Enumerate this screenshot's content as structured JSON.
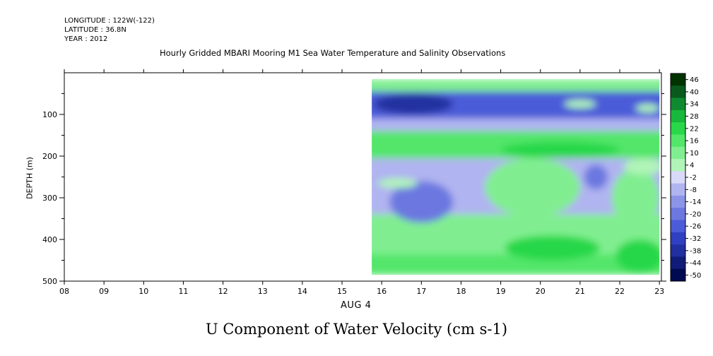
{
  "header": {
    "longitude": "LONGITUDE : 122W(-122)",
    "latitude": "LATITUDE : 36.8N",
    "year": "YEAR : 2012",
    "title": "Hourly Gridded MBARI Mooring M1 Sea Water Temperature and Salinity Observations"
  },
  "chart_data": {
    "type": "heatmap",
    "title": "U Component of Water Velocity (cm s-1)",
    "xlabel": "AUG  4",
    "ylabel": "DEPTH (m)",
    "x_ticks": [
      "08",
      "09",
      "10",
      "11",
      "12",
      "13",
      "14",
      "15",
      "16",
      "17",
      "18",
      "19",
      "20",
      "21",
      "22",
      "23"
    ],
    "y_ticks": [
      "100",
      "200",
      "300",
      "400",
      "500"
    ],
    "x_range_hours": [
      8,
      23.05
    ],
    "y_range_m": [
      500,
      0
    ],
    "data_x_range_hours": [
      15.75,
      23
    ],
    "data_depth_range_m": [
      15,
      485
    ],
    "colorbar_levels": [
      "46",
      "40",
      "34",
      "28",
      "22",
      "16",
      "10",
      "4",
      "-2",
      "-8",
      "-14",
      "-20",
      "-26",
      "-32",
      "-38",
      "-44",
      "-50"
    ],
    "colorbar_colors": [
      "#003300",
      "#0a5a1e",
      "#108a30",
      "#18b83c",
      "#28d848",
      "#52e66a",
      "#80ee90",
      "#b0f4b8",
      "#d8daf8",
      "#b0b4f0",
      "#8c94e8",
      "#6c78e0",
      "#4c5cd8",
      "#3040c0",
      "#2030a0",
      "#101c78",
      "#000a50"
    ],
    "grid": false,
    "bands": [
      {
        "depth_top": 15,
        "depth_bottom": 45,
        "value": 10
      },
      {
        "depth_top": 45,
        "depth_bottom": 110,
        "value": -25
      },
      {
        "depth_top": 110,
        "depth_bottom": 140,
        "value": -8
      },
      {
        "depth_top": 140,
        "depth_bottom": 205,
        "value": 16
      },
      {
        "depth_top": 205,
        "depth_bottom": 340,
        "value": -10
      },
      {
        "depth_top": 340,
        "depth_bottom": 435,
        "value": 10
      },
      {
        "depth_top": 435,
        "depth_bottom": 485,
        "value": 16
      }
    ],
    "features": [
      {
        "x_center": 19.8,
        "depth_center": 275,
        "x_half": 1.2,
        "depth_half": 70,
        "value": 8
      },
      {
        "x_center": 20.5,
        "depth_center": 185,
        "x_half": 1.5,
        "depth_half": 20,
        "value": 22
      },
      {
        "x_center": 22.4,
        "depth_center": 300,
        "x_half": 0.6,
        "depth_half": 70,
        "value": 8
      },
      {
        "x_center": 16.8,
        "depth_center": 75,
        "x_half": 1.0,
        "depth_half": 25,
        "value": -40
      },
      {
        "x_center": 20.3,
        "depth_center": 420,
        "x_half": 1.2,
        "depth_half": 30,
        "value": 22
      },
      {
        "x_center": 22.5,
        "depth_center": 440,
        "x_half": 0.6,
        "depth_half": 40,
        "value": 22
      },
      {
        "x_center": 17.0,
        "depth_center": 310,
        "x_half": 0.8,
        "depth_half": 50,
        "value": -20
      },
      {
        "x_center": 21.4,
        "depth_center": 250,
        "x_half": 0.3,
        "depth_half": 30,
        "value": -20
      },
      {
        "x_center": 21.0,
        "depth_center": 75,
        "x_half": 0.4,
        "depth_half": 10,
        "value": 4
      },
      {
        "x_center": 22.7,
        "depth_center": 85,
        "x_half": 0.3,
        "depth_half": 10,
        "value": 4
      },
      {
        "x_center": 16.4,
        "depth_center": 265,
        "x_half": 0.5,
        "depth_half": 12,
        "value": 4
      },
      {
        "x_center": 22.6,
        "depth_center": 225,
        "x_half": 0.5,
        "depth_half": 20,
        "value": 4
      }
    ]
  }
}
